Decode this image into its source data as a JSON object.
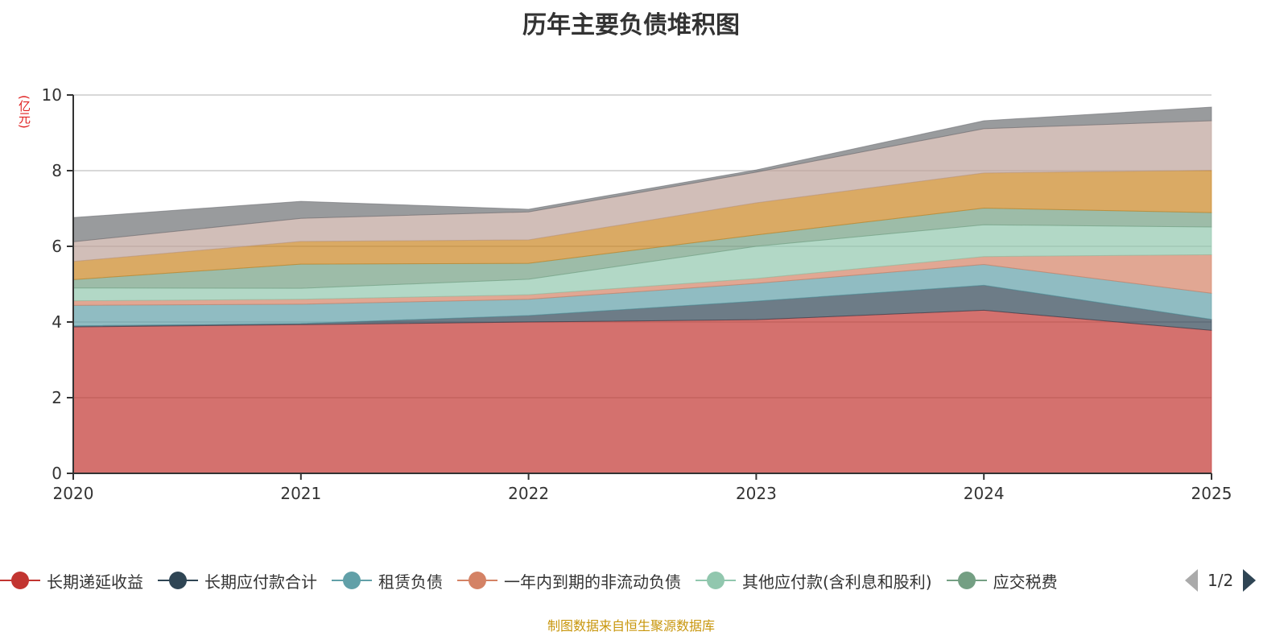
{
  "chart_data": {
    "type": "area",
    "stacked": true,
    "title": "历年主要负债堆积图",
    "ylabel": "(亿元)",
    "xlabel": "",
    "x": [
      "2020",
      "2021",
      "2022",
      "2023",
      "2024",
      "2025"
    ],
    "ylim": [
      0,
      10
    ],
    "yticks": [
      "0",
      "2",
      "4",
      "6",
      "8",
      "10"
    ],
    "grid": true,
    "legend_position": "bottom",
    "legend_page": "1/2",
    "series": [
      {
        "name": "长期递延收益",
        "color": "#c23531",
        "values": [
          3.87,
          3.93,
          4.0,
          4.06,
          4.31,
          3.78
        ]
      },
      {
        "name": "长期应付款合计",
        "color": "#2f4554",
        "values": [
          0.03,
          0.03,
          0.17,
          0.49,
          0.66,
          0.29
        ]
      },
      {
        "name": "租赁负债",
        "color": "#61a0a8",
        "values": [
          0.54,
          0.51,
          0.43,
          0.47,
          0.55,
          0.69
        ]
      },
      {
        "name": "一年内到期的非流动负债",
        "color": "#d48265",
        "values": [
          0.12,
          0.13,
          0.12,
          0.13,
          0.21,
          1.02
        ]
      },
      {
        "name": "其他应付款(含利息和股利)",
        "color": "#91c7ae",
        "values": [
          0.34,
          0.29,
          0.41,
          0.85,
          0.84,
          0.73
        ]
      },
      {
        "name": "应交税费",
        "color": "#749f83",
        "values": [
          0.22,
          0.64,
          0.42,
          0.3,
          0.44,
          0.38
        ]
      },
      {
        "color": "#ca8622",
        "values": [
          0.48,
          0.6,
          0.62,
          0.85,
          0.93,
          1.12
        ]
      },
      {
        "color": "#bda29a",
        "values": [
          0.52,
          0.61,
          0.74,
          0.81,
          1.17,
          1.31
        ]
      },
      {
        "color": "#6e7074",
        "values": [
          0.64,
          0.45,
          0.07,
          0.06,
          0.21,
          0.36
        ]
      }
    ]
  },
  "footer": "制图数据来自恒生聚源数据库"
}
